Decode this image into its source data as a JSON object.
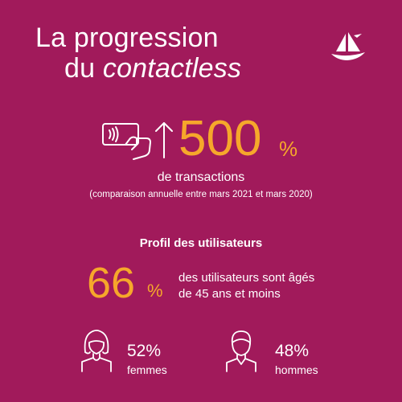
{
  "header": {
    "title_line1": "La progression",
    "title_line2_prefix": "du ",
    "title_line2_emphasis": "contactless"
  },
  "logo": {
    "icon": "ship-logo-icon"
  },
  "transactions": {
    "icons": [
      "contactless-card-icon",
      "up-arrow-icon"
    ],
    "value": "500",
    "unit": "%",
    "label": "de transactions",
    "note": "(comparaison annuelle entre mars 2021 et mars 2020)"
  },
  "profile": {
    "heading": "Profil des utilisateurs",
    "value": "66",
    "unit": "%",
    "desc_line1": "des utilisateurs sont âgés",
    "desc_line2": "de 45 ans et moins"
  },
  "gender": {
    "women": {
      "icon": "woman-icon",
      "value": "52%",
      "label": "femmes"
    },
    "men": {
      "icon": "man-icon",
      "value": "48%",
      "label": "hommes"
    }
  },
  "colors": {
    "background": "#A11A5B",
    "accent": "#F6A72B",
    "text": "#FFFFFF"
  }
}
